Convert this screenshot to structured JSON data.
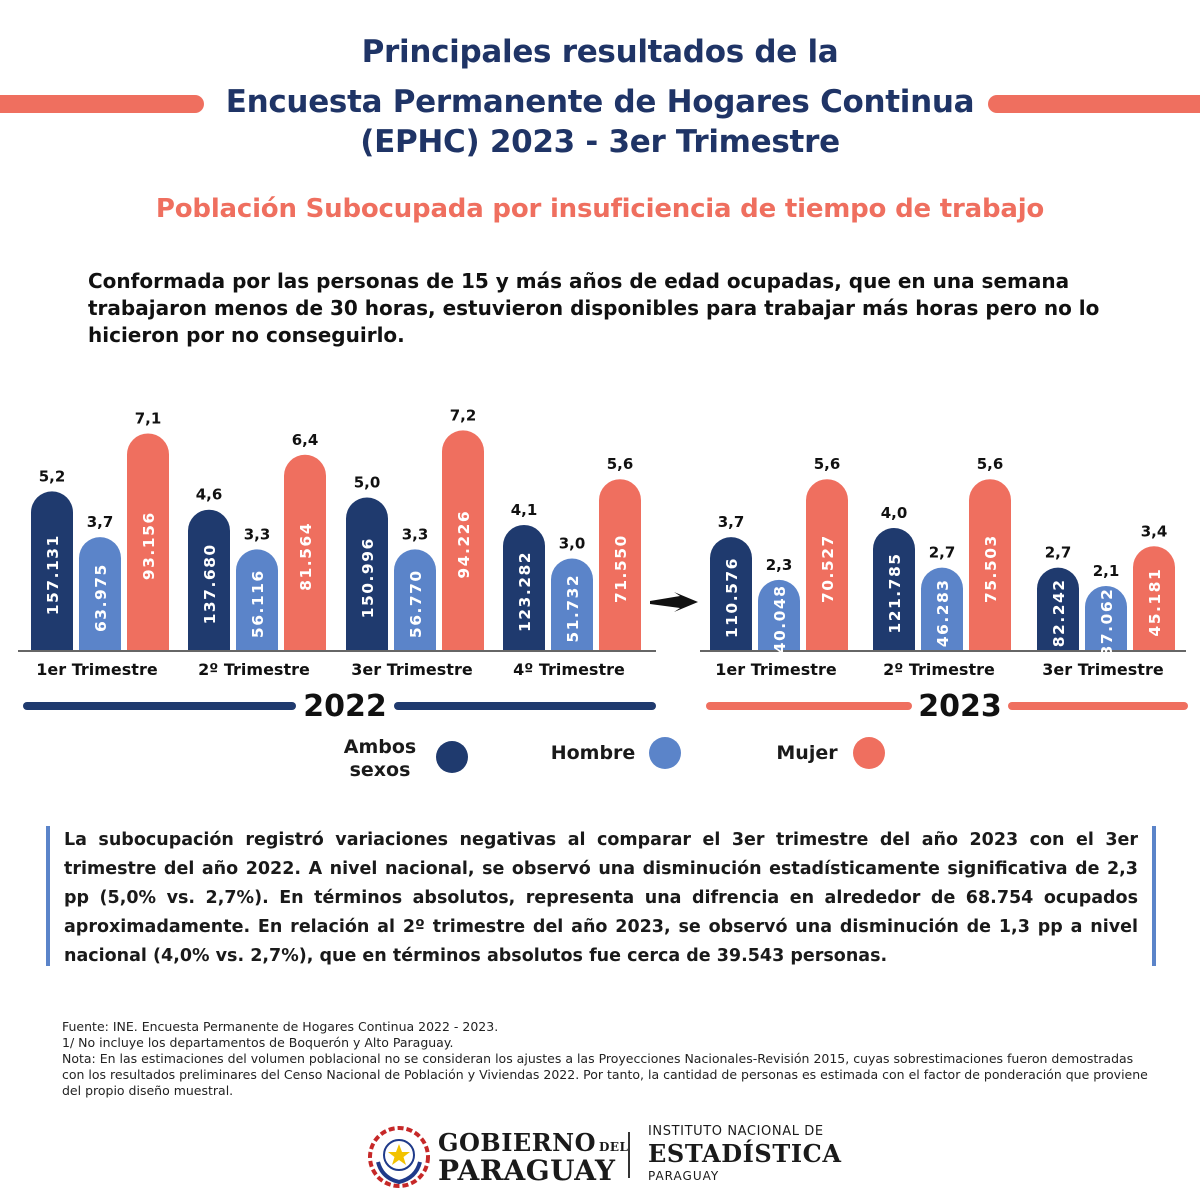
{
  "header": {
    "line1": "Principales resultados de la",
    "line2": "Encuesta Permanente de Hogares Continua",
    "line3": "(EPHC) 2023 - 3er Trimestre"
  },
  "subtitle": "Población Subocupada por insuficiencia de tiempo de trabajo",
  "definition": "Conformada por las personas de 15 y más años de edad ocupadas, que en una semana trabajaron menos de 30 horas, estuvieron disponibles para trabajar más horas pero no lo hicieron por no conseguirlo.",
  "colors": {
    "ambos": "#1f3a6e",
    "hombre": "#5b84c9",
    "mujer": "#ef6f5f",
    "title": "#1f3466"
  },
  "legend": {
    "ambos": "Ambos sexos",
    "hombre": "Hombre",
    "mujer": "Mujer"
  },
  "chart_data": [
    {
      "type": "bar",
      "year": "2022",
      "categories": [
        "1er Trimestre",
        "2º Trimestre",
        "3er Trimestre",
        "4º Trimestre"
      ],
      "series": [
        {
          "name": "Ambos sexos",
          "rates": [
            "5,2",
            "4,6",
            "5,0",
            "4,1"
          ],
          "values": [
            5.2,
            4.6,
            5.0,
            4.1
          ],
          "counts": [
            "157.131",
            "137.680",
            "150.996",
            "123.282"
          ]
        },
        {
          "name": "Hombre",
          "rates": [
            "3,7",
            "3,3",
            "3,3",
            "3,0"
          ],
          "values": [
            3.7,
            3.3,
            3.3,
            3.0
          ],
          "counts": [
            "63.975",
            "56.116",
            "56.770",
            "51.732"
          ]
        },
        {
          "name": "Mujer",
          "rates": [
            "7,1",
            "6,4",
            "7,2",
            "5,6"
          ],
          "values": [
            7.1,
            6.4,
            7.2,
            5.6
          ],
          "counts": [
            "93.156",
            "81.564",
            "94.226",
            "71.550"
          ]
        }
      ]
    },
    {
      "type": "bar",
      "year": "2023",
      "categories": [
        "1er Trimestre",
        "2º Trimestre",
        "3er Trimestre"
      ],
      "series": [
        {
          "name": "Ambos sexos",
          "rates": [
            "3,7",
            "4,0",
            "2,7"
          ],
          "values": [
            3.7,
            4.0,
            2.7
          ],
          "counts": [
            "110.576",
            "121.785",
            "82.242"
          ]
        },
        {
          "name": "Hombre",
          "rates": [
            "2,3",
            "2,7",
            "2,1"
          ],
          "values": [
            2.3,
            2.7,
            2.1
          ],
          "counts": [
            "40.048",
            "46.283",
            "37.062"
          ]
        },
        {
          "name": "Mujer",
          "rates": [
            "5,6",
            "5,6",
            "3,4"
          ],
          "values": [
            5.6,
            5.6,
            3.4
          ],
          "counts": [
            "70.527",
            "75.503",
            "45.181"
          ]
        }
      ]
    }
  ],
  "summary": "La subocupación registró variaciones negativas al comparar el 3er trimestre del año 2023 con el 3er trimestre del año 2022. A nivel nacional, se observó una disminución estadísticamente significativa de 2,3 pp (5,0% vs. 2,7%). En términos absolutos,  representa una difrencia en alrededor de 68.754 ocupados aproximadamente. En relación al 2º trimestre del año 2023, se observó una disminución de 1,3 pp a nivel nacional (4,0% vs. 2,7%), que en términos absolutos fue cerca de 39.543 personas.",
  "footnotes": {
    "source": "Fuente: INE. Encuesta Permanente de Hogares Continua 2022 - 2023.",
    "note1": "1/ No incluye los departamentos de Boquerón y Alto Paraguay.",
    "note2": "Nota: En las estimaciones del volumen poblacional no se consideran los ajustes a las Proyecciones Nacionales-Revisión 2015, cuyas sobrestimaciones fueron demostradas con los resultados preliminares del Censo Nacional de Población y Viviendas 2022. Por tanto, la cantidad de personas es estimada con el factor de ponderación que proviene del propio diseño muestral."
  },
  "footer": {
    "gobierno": "GOBIERNO",
    "del": "DEL",
    "paraguay": "PARAGUAY",
    "ine_line1": "INSTITUTO NACIONAL DE",
    "ine_line2": "ESTADÍSTICA",
    "ine_line3": "PARAGUAY"
  }
}
